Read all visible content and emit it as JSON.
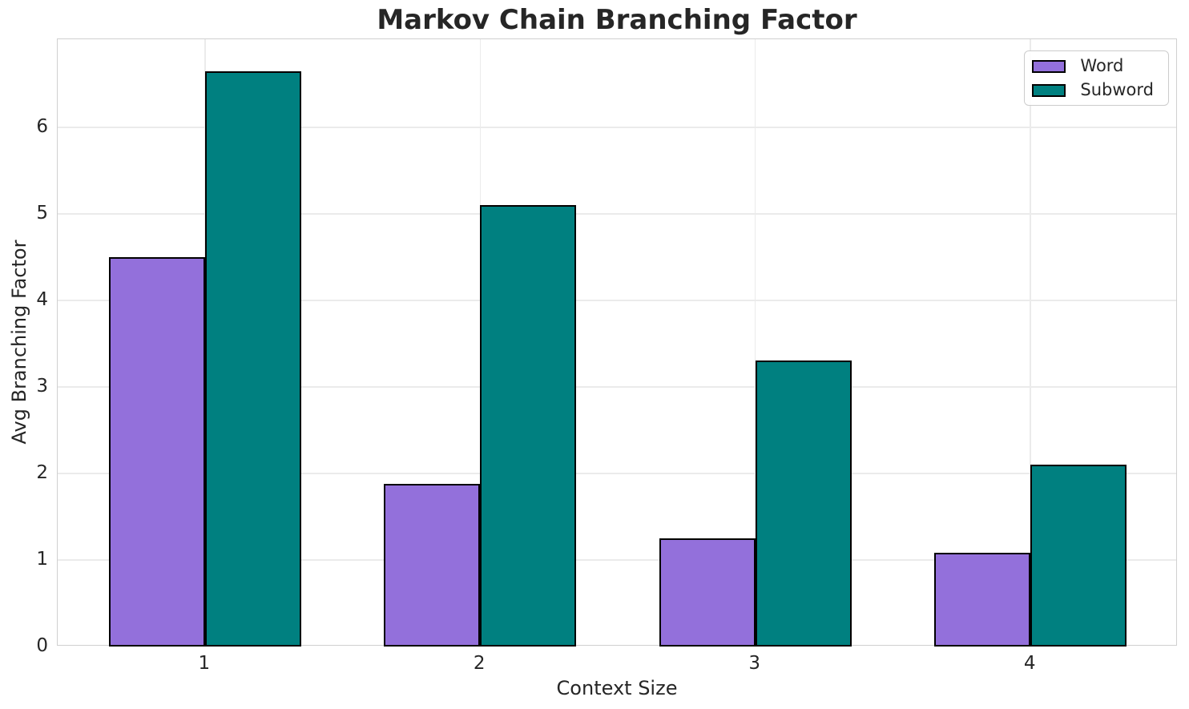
{
  "chart_data": {
    "type": "bar",
    "title": "Markov Chain Branching Factor",
    "xlabel": "Context Size",
    "ylabel": "Avg Branching Factor",
    "categories": [
      "1",
      "2",
      "3",
      "4"
    ],
    "series": [
      {
        "name": "Word",
        "color": "#9370DB",
        "values": [
          4.5,
          1.88,
          1.25,
          1.08
        ]
      },
      {
        "name": "Subword",
        "color": "#008080",
        "values": [
          6.65,
          5.1,
          3.31,
          2.1
        ]
      }
    ],
    "yticks": [
      0,
      1,
      2,
      3,
      4,
      5,
      6
    ],
    "ylim": [
      0,
      7.02
    ],
    "grid": true,
    "legend_position": "upper right",
    "bar_edge_color": "#000000"
  },
  "style": {
    "background_color": "#ffffff",
    "text_color": "#262626",
    "grid_color": "#ebebeb",
    "spine_color": "#d0d0d0"
  }
}
